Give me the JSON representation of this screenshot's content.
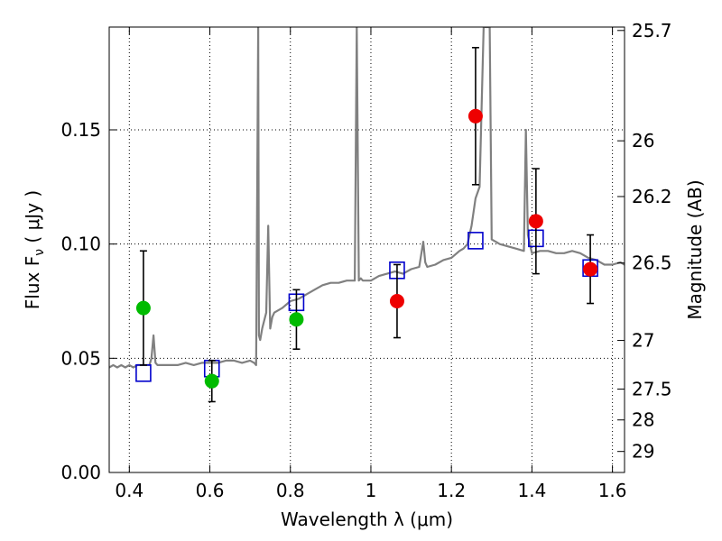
{
  "chart_data": {
    "type": "scatter",
    "xlabel": "Wavelength  λ (μm)",
    "ylabel": "Flux  F_ν  ( μJy )",
    "ylabel_right": "Magnitude (AB)",
    "xlim": [
      0.35,
      1.63
    ],
    "ylim": [
      0.0,
      0.195
    ],
    "grid": true,
    "x_ticks": [
      0.4,
      0.6,
      0.8,
      1.0,
      1.2,
      1.4,
      1.6
    ],
    "x_tick_labels": [
      "0.4",
      "0.6",
      "0.8",
      "1",
      "1.2",
      "1.4",
      "1.6"
    ],
    "y_ticks": [
      0.0,
      0.05,
      0.1,
      0.15
    ],
    "y_tick_labels": [
      "0.00",
      "0.05",
      "0.10",
      "0.15"
    ],
    "right_ticks": [
      {
        "mag": "25.7",
        "flux": 0.1935
      },
      {
        "mag": "26",
        "flux": 0.1452
      },
      {
        "mag": "26.2",
        "flux": 0.1208
      },
      {
        "mag": "26.5",
        "flux": 0.0917
      },
      {
        "mag": "27",
        "flux": 0.0578
      },
      {
        "mag": "27.5",
        "flux": 0.0365
      },
      {
        "mag": "28",
        "flux": 0.023
      },
      {
        "mag": "29",
        "flux": 0.0092
      }
    ],
    "colors": {
      "spectrum": "#808080",
      "green_points": "#00bb00",
      "red_points": "#ee0000",
      "model_squares": "#0000cc",
      "error_bars": "#000000"
    },
    "series": [
      {
        "kind": "spectrum",
        "x": [
          0.35,
          0.36,
          0.37,
          0.38,
          0.39,
          0.4,
          0.41,
          0.42,
          0.43,
          0.44,
          0.45,
          0.455,
          0.46,
          0.465,
          0.47,
          0.48,
          0.5,
          0.52,
          0.54,
          0.56,
          0.58,
          0.6,
          0.62,
          0.64,
          0.66,
          0.68,
          0.7,
          0.71,
          0.715,
          0.72,
          0.722,
          0.725,
          0.73,
          0.74,
          0.745,
          0.75,
          0.755,
          0.76,
          0.78,
          0.8,
          0.82,
          0.84,
          0.86,
          0.88,
          0.9,
          0.92,
          0.94,
          0.96,
          0.965,
          0.97,
          0.975,
          0.98,
          1.0,
          1.02,
          1.04,
          1.06,
          1.08,
          1.1,
          1.12,
          1.13,
          1.135,
          1.14,
          1.16,
          1.18,
          1.2,
          1.22,
          1.23,
          1.24,
          1.25,
          1.26,
          1.27,
          1.28,
          1.285,
          1.29,
          1.295,
          1.3,
          1.31,
          1.32,
          1.34,
          1.36,
          1.38,
          1.385,
          1.39,
          1.4,
          1.42,
          1.44,
          1.46,
          1.48,
          1.5,
          1.52,
          1.54,
          1.56,
          1.58,
          1.6,
          1.62,
          1.63
        ],
        "y": [
          0.046,
          0.047,
          0.046,
          0.047,
          0.046,
          0.047,
          0.046,
          0.047,
          0.047,
          0.047,
          0.047,
          0.05,
          0.06,
          0.048,
          0.047,
          0.047,
          0.047,
          0.047,
          0.048,
          0.047,
          0.048,
          0.048,
          0.048,
          0.049,
          0.049,
          0.048,
          0.049,
          0.048,
          0.047,
          0.195,
          0.06,
          0.058,
          0.063,
          0.07,
          0.108,
          0.063,
          0.068,
          0.07,
          0.072,
          0.075,
          0.076,
          0.078,
          0.08,
          0.082,
          0.083,
          0.083,
          0.084,
          0.084,
          0.195,
          0.084,
          0.085,
          0.084,
          0.084,
          0.086,
          0.087,
          0.088,
          0.087,
          0.089,
          0.09,
          0.101,
          0.092,
          0.09,
          0.091,
          0.093,
          0.094,
          0.097,
          0.098,
          0.1,
          0.108,
          0.12,
          0.125,
          0.195,
          0.195,
          0.195,
          0.195,
          0.102,
          0.101,
          0.1,
          0.099,
          0.098,
          0.097,
          0.15,
          0.104,
          0.096,
          0.097,
          0.097,
          0.096,
          0.096,
          0.097,
          0.096,
          0.094,
          0.093,
          0.091,
          0.091,
          0.092,
          0.091
        ]
      },
      {
        "kind": "observed",
        "name": "",
        "color": "green",
        "points": [
          {
            "x": 0.435,
            "y": 0.072,
            "yerr": 0.025
          },
          {
            "x": 0.605,
            "y": 0.04,
            "yerr": 0.009
          },
          {
            "x": 0.815,
            "y": 0.067,
            "yerr": 0.013
          }
        ]
      },
      {
        "kind": "observed",
        "name": "",
        "color": "red",
        "points": [
          {
            "x": 1.065,
            "y": 0.075,
            "yerr": 0.016
          },
          {
            "x": 1.26,
            "y": 0.156,
            "yerr": 0.03
          },
          {
            "x": 1.41,
            "y": 0.11,
            "yerr": 0.023
          },
          {
            "x": 1.545,
            "y": 0.089,
            "yerr": 0.015
          }
        ]
      },
      {
        "kind": "model",
        "name": "",
        "points": [
          {
            "x": 0.435,
            "y": 0.0435
          },
          {
            "x": 0.605,
            "y": 0.0455
          },
          {
            "x": 0.815,
            "y": 0.0745
          },
          {
            "x": 1.065,
            "y": 0.0885
          },
          {
            "x": 1.26,
            "y": 0.1015
          },
          {
            "x": 1.41,
            "y": 0.1025
          },
          {
            "x": 1.545,
            "y": 0.0895
          }
        ]
      }
    ]
  }
}
